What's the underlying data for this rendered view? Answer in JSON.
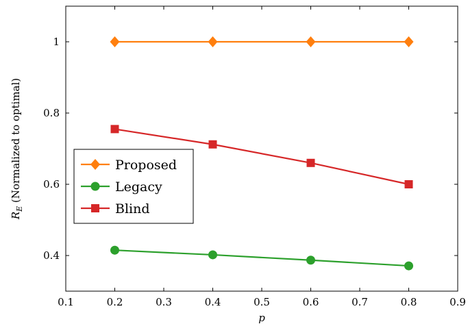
{
  "chart_data": {
    "type": "line",
    "x": [
      0.2,
      0.4,
      0.6,
      0.8
    ],
    "xlabel": "p",
    "ylabel": "R_E (Normalized to optimal)",
    "ylabel_main": "R",
    "ylabel_sub": "E",
    "ylabel_rest": " (Normalized to optimal)",
    "xlim": [
      0.1,
      0.9
    ],
    "ylim": [
      0.3,
      1.1
    ],
    "xticks": [
      0.1,
      0.2,
      0.3,
      0.4,
      0.5,
      0.6,
      0.7,
      0.8,
      0.9
    ],
    "xtick_labels": [
      "0.1",
      "0.2",
      "0.3",
      "0.4",
      "0.5",
      "0.6",
      "0.7",
      "0.8",
      "0.9"
    ],
    "yticks": [
      0.4,
      0.6,
      0.8,
      1.0
    ],
    "ytick_labels": [
      "0.4",
      "0.6",
      "0.8",
      "1"
    ],
    "grid": false,
    "legend_position": "center-left",
    "series": [
      {
        "name": "Proposed",
        "values": [
          1.0,
          1.0,
          1.0,
          1.0
        ],
        "color": "#ff7f0e",
        "marker": "diamond"
      },
      {
        "name": "Legacy",
        "values": [
          0.415,
          0.402,
          0.387,
          0.371
        ],
        "color": "#2ca02c",
        "marker": "circle"
      },
      {
        "name": "Blind",
        "values": [
          0.755,
          0.712,
          0.66,
          0.6
        ],
        "color": "#d62728",
        "marker": "square"
      }
    ]
  }
}
